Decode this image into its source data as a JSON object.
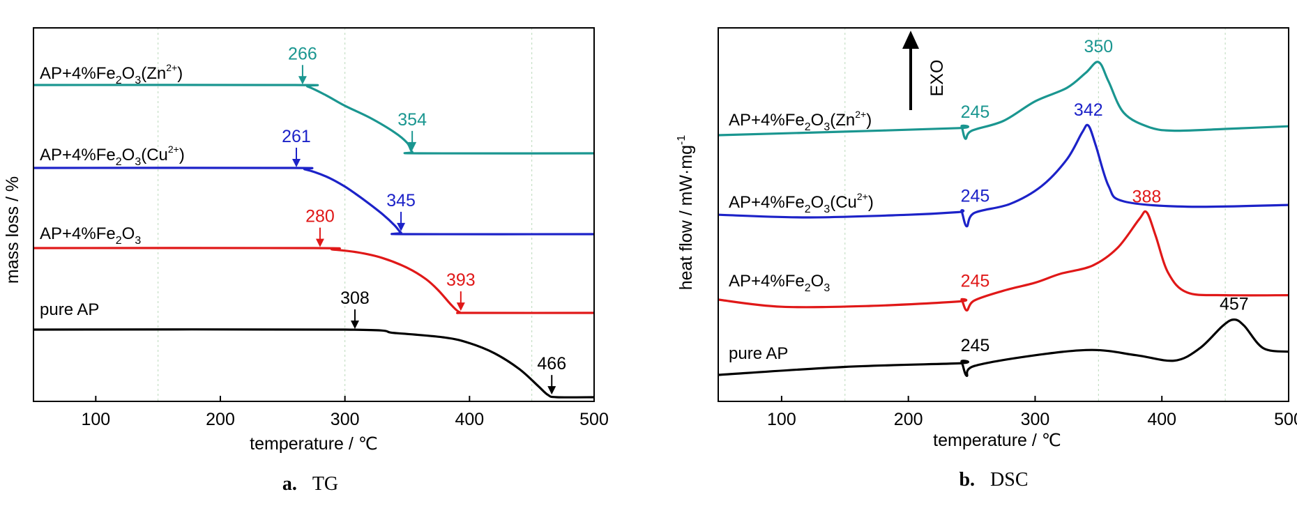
{
  "chart_data": [
    {
      "panel": "a.",
      "caption": "TG",
      "type": "line",
      "xlabel": "temperature / ℃",
      "ylabel": "mass loss / %",
      "xlim": [
        50,
        500
      ],
      "xticks": [
        100,
        200,
        300,
        400,
        500
      ],
      "grid_x": [
        150,
        300,
        450
      ],
      "grid": "vertical dashed lines at 150, 300, 450",
      "yticks": "none",
      "series": [
        {
          "name": "AP+4%Fe2O3(Zn2+)",
          "label_main": "AP+4%Fe",
          "label_sub1": "2",
          "label_mid": "O",
          "label_sub2": "3",
          "label_open": "(Zn",
          "label_sup": "2+",
          "label_close": ")",
          "color": "#1a9690",
          "points": [
            [
              50,
              4.6
            ],
            [
              260,
              4.6
            ],
            [
              270,
              4.5
            ],
            [
              285,
              3.9
            ],
            [
              300,
              3.2
            ],
            [
              320,
              2.4
            ],
            [
              340,
              1.4
            ],
            [
              350,
              0.7
            ],
            [
              354,
              0.1
            ],
            [
              360,
              0.0
            ],
            [
              500,
              0.0
            ]
          ],
          "offset": 92,
          "annotations": [
            {
              "label": "266",
              "x": 266,
              "pos": "onset"
            },
            {
              "label": "354",
              "x": 354,
              "pos": "end"
            }
          ]
        },
        {
          "name": "AP+4%Fe2O3(Cu2+)",
          "label_main": "AP+4%Fe",
          "label_sub1": "2",
          "label_mid": "O",
          "label_sub2": "3",
          "label_open": "(Cu",
          "label_sup": "2+",
          "label_close": ")",
          "color": "#1c22c8",
          "points": [
            [
              50,
              4.6
            ],
            [
              255,
              4.6
            ],
            [
              268,
              4.5
            ],
            [
              285,
              4.0
            ],
            [
              300,
              3.3
            ],
            [
              315,
              2.4
            ],
            [
              330,
              1.4
            ],
            [
              340,
              0.6
            ],
            [
              345,
              0.1
            ],
            [
              350,
              0.0
            ],
            [
              500,
              0.0
            ]
          ],
          "offset": 62,
          "annotations": [
            {
              "label": "261",
              "x": 261,
              "pos": "onset"
            },
            {
              "label": "345",
              "x": 345,
              "pos": "end"
            }
          ]
        },
        {
          "name": "AP+4%Fe2O3",
          "label_main": "AP+4%Fe",
          "label_sub1": "2",
          "label_mid": "O",
          "label_sub2": "3",
          "label_open": "",
          "label_sup": "",
          "label_close": "",
          "color": "#e01818",
          "points": [
            [
              50,
              4.6
            ],
            [
              275,
              4.6
            ],
            [
              290,
              4.5
            ],
            [
              310,
              4.3
            ],
            [
              330,
              3.9
            ],
            [
              350,
              3.2
            ],
            [
              365,
              2.4
            ],
            [
              375,
              1.6
            ],
            [
              385,
              0.6
            ],
            [
              392,
              0.05
            ],
            [
              400,
              0.0
            ],
            [
              500,
              0.0
            ]
          ],
          "offset": 32,
          "annotations": [
            {
              "label": "280",
              "x": 280,
              "pos": "onset"
            },
            {
              "label": "393",
              "x": 393,
              "pos": "end"
            }
          ]
        },
        {
          "name": "pure AP",
          "label_main": "pure AP",
          "label_sub1": "",
          "label_mid": "",
          "label_sub2": "",
          "label_open": "",
          "label_sup": "",
          "label_close": "",
          "color": "#000000",
          "points": [
            [
              50,
              6.0
            ],
            [
              300,
              6.0
            ],
            [
              340,
              5.7
            ],
            [
              380,
              5.3
            ],
            [
              400,
              4.8
            ],
            [
              420,
              3.9
            ],
            [
              440,
              2.5
            ],
            [
              455,
              1.0
            ],
            [
              463,
              0.2
            ],
            [
              470,
              0.0
            ],
            [
              500,
              0.0
            ]
          ],
          "offset": 0,
          "annotations": [
            {
              "label": "308",
              "x": 308,
              "pos": "onset"
            },
            {
              "label": "466",
              "x": 466,
              "pos": "end"
            }
          ]
        }
      ]
    },
    {
      "panel": "b.",
      "caption": "DSC",
      "type": "line",
      "xlabel": "temperature / ℃",
      "ylabel": "heat flow / mW·mg",
      "ylabel_sup": "-1",
      "exo_label": "EXO",
      "xlim": [
        50,
        500
      ],
      "xticks": [
        100,
        200,
        300,
        400,
        500
      ],
      "grid_x": [
        150,
        350,
        450
      ],
      "grid": "vertical dashed lines at 150, 350, 450",
      "yticks": "none",
      "series": [
        {
          "name": "AP+4%Fe2O3(Zn2+)",
          "label_main": "AP+4%Fe",
          "label_sub1": "2",
          "label_mid": "O",
          "label_sub2": "3",
          "label_open": "(Zn",
          "label_sup": "2+",
          "label_close": ")",
          "color": "#1a9690",
          "points": [
            [
              50,
              0.0
            ],
            [
              150,
              0.4
            ],
            [
              240,
              0.8
            ],
            [
              242,
              1.0
            ],
            [
              245,
              -0.4
            ],
            [
              250,
              0.5
            ],
            [
              275,
              1.6
            ],
            [
              300,
              3.8
            ],
            [
              325,
              5.3
            ],
            [
              340,
              7.0
            ],
            [
              350,
              8.2
            ],
            [
              358,
              6.0
            ],
            [
              370,
              2.5
            ],
            [
              390,
              0.9
            ],
            [
              410,
              0.5
            ],
            [
              450,
              0.7
            ],
            [
              500,
              1.0
            ]
          ],
          "annotations": [
            {
              "label": "245",
              "x": 245,
              "pos": "endo"
            },
            {
              "label": "350",
              "x": 350,
              "pos": "peak"
            }
          ]
        },
        {
          "name": "AP+4%Fe2O3(Cu2+)",
          "label_main": "AP+4%Fe",
          "label_sub1": "2",
          "label_mid": "O",
          "label_sub2": "3",
          "label_open": "(Cu",
          "label_sup": "2+",
          "label_close": ")",
          "color": "#1c22c8",
          "points": [
            [
              50,
              0.3
            ],
            [
              120,
              0.0
            ],
            [
              200,
              0.3
            ],
            [
              240,
              0.6
            ],
            [
              242,
              0.7
            ],
            [
              246,
              -1.0
            ],
            [
              252,
              0.5
            ],
            [
              280,
              1.5
            ],
            [
              305,
              3.5
            ],
            [
              325,
              6.5
            ],
            [
              337,
              9.5
            ],
            [
              342,
              10.3
            ],
            [
              348,
              8.0
            ],
            [
              358,
              3.5
            ],
            [
              370,
              1.8
            ],
            [
              420,
              1.2
            ],
            [
              500,
              1.4
            ]
          ],
          "annotations": [
            {
              "label": "245",
              "x": 245,
              "pos": "endo"
            },
            {
              "label": "342",
              "x": 342,
              "pos": "peak"
            }
          ]
        },
        {
          "name": "AP+4%Fe2O3",
          "label_main": "AP+4%Fe",
          "label_sub1": "2",
          "label_mid": "O",
          "label_sub2": "3",
          "label_open": "",
          "label_sup": "",
          "label_close": "",
          "color": "#e01818",
          "points": [
            [
              50,
              0.0
            ],
            [
              100,
              -0.8
            ],
            [
              170,
              -0.7
            ],
            [
              240,
              -0.2
            ],
            [
              242,
              0.0
            ],
            [
              246,
              -1.2
            ],
            [
              252,
              -0.1
            ],
            [
              275,
              1.0
            ],
            [
              300,
              1.9
            ],
            [
              320,
              2.9
            ],
            [
              345,
              3.8
            ],
            [
              365,
              5.8
            ],
            [
              382,
              9.0
            ],
            [
              388,
              9.8
            ],
            [
              395,
              7.2
            ],
            [
              405,
              3.0
            ],
            [
              420,
              0.8
            ],
            [
              450,
              0.5
            ],
            [
              500,
              0.5
            ]
          ],
          "annotations": [
            {
              "label": "245",
              "x": 245,
              "pos": "endo"
            },
            {
              "label": "388",
              "x": 388,
              "pos": "peak"
            }
          ]
        },
        {
          "name": "pure AP",
          "label_main": "pure AP",
          "label_sub1": "",
          "label_mid": "",
          "label_sub2": "",
          "label_open": "",
          "label_sup": "",
          "label_close": "",
          "color": "#000000",
          "points": [
            [
              50,
              0.0
            ],
            [
              150,
              0.9
            ],
            [
              240,
              1.3
            ],
            [
              242,
              1.5
            ],
            [
              246,
              -0.1
            ],
            [
              252,
              1.0
            ],
            [
              300,
              2.2
            ],
            [
              345,
              2.8
            ],
            [
              380,
              2.2
            ],
            [
              410,
              1.6
            ],
            [
              430,
              3.0
            ],
            [
              448,
              5.5
            ],
            [
              457,
              6.2
            ],
            [
              465,
              5.5
            ],
            [
              480,
              3.0
            ],
            [
              500,
              2.6
            ]
          ],
          "annotations": [
            {
              "label": "245",
              "x": 245,
              "pos": "endo"
            },
            {
              "label": "457",
              "x": 457,
              "pos": "peak"
            }
          ]
        }
      ]
    }
  ]
}
